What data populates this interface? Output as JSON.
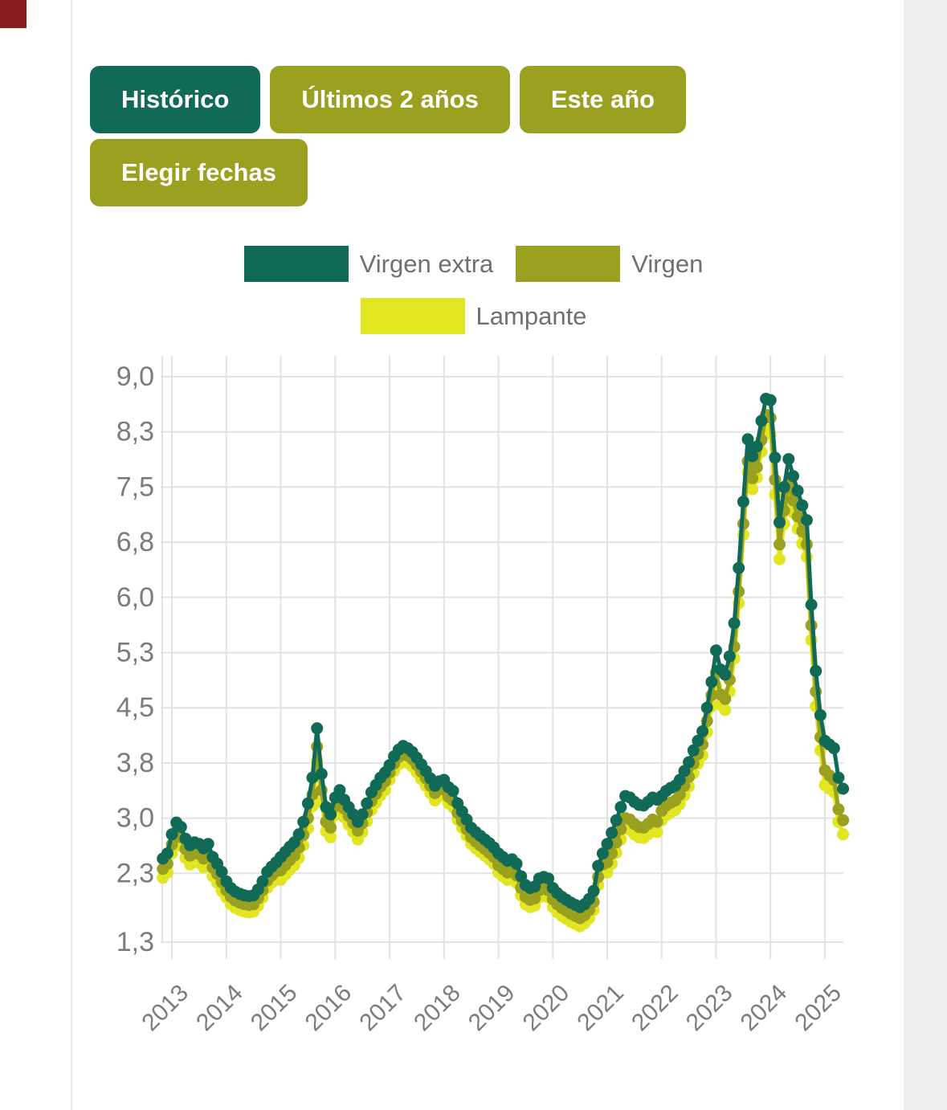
{
  "colors": {
    "dark_green": "#116a56",
    "olive": "#9aa01f",
    "yellow": "#e1e621",
    "corner_red": "#8a1c1c",
    "grid": "#e3e3e3",
    "axis_text": "#7b7d7c",
    "legend_text": "#6f706f"
  },
  "filters": {
    "buttons": [
      {
        "label": "Histórico",
        "active": true
      },
      {
        "label": "Últimos 2 años",
        "active": false
      },
      {
        "label": "Este año",
        "active": false
      },
      {
        "label": "Elegir fechas",
        "active": false
      }
    ]
  },
  "legend": {
    "items": [
      {
        "label": "Virgen extra",
        "color": "#116a56"
      },
      {
        "label": "Virgen",
        "color": "#9aa01f"
      },
      {
        "label": "Lampante",
        "color": "#e1e621"
      }
    ]
  },
  "chart_data": {
    "type": "line",
    "title": "",
    "frequency": "monthly",
    "start": "2012-11",
    "end": "2025-05",
    "x_axis": {
      "tick_labels": [
        "2013",
        "2014",
        "2015",
        "2016",
        "2017",
        "2018",
        "2019",
        "2020",
        "2021",
        "2022",
        "2023",
        "2024",
        "2025"
      ]
    },
    "y_axis": {
      "tick_labels": [
        "9,0",
        "8,3",
        "7,5",
        "6,8",
        "6,0",
        "5,3",
        "4,5",
        "3,8",
        "3,0",
        "2,3",
        "1,3"
      ],
      "tick_values": [
        9.0,
        8.25,
        7.5,
        6.75,
        6.0,
        5.25,
        4.5,
        3.75,
        3.0,
        2.25,
        1.315
      ],
      "range": [
        1.315,
        9.0
      ],
      "grid": true
    },
    "legend_position": "top-center",
    "series": [
      {
        "name": "Virgen extra",
        "color": "#116a56",
        "values": [
          2.45,
          2.52,
          2.78,
          2.94,
          2.88,
          2.72,
          2.63,
          2.67,
          2.65,
          2.59,
          2.65,
          2.47,
          2.38,
          2.27,
          2.14,
          2.05,
          2.0,
          1.97,
          1.95,
          1.94,
          1.95,
          2.03,
          2.14,
          2.27,
          2.34,
          2.4,
          2.47,
          2.54,
          2.61,
          2.67,
          2.78,
          2.95,
          3.2,
          3.55,
          4.22,
          3.6,
          3.15,
          3.05,
          3.28,
          3.38,
          3.25,
          3.15,
          3.05,
          2.95,
          3.05,
          3.2,
          3.35,
          3.45,
          3.55,
          3.62,
          3.72,
          3.84,
          3.93,
          3.98,
          3.95,
          3.9,
          3.82,
          3.73,
          3.64,
          3.54,
          3.44,
          3.5,
          3.52,
          3.42,
          3.37,
          3.2,
          3.09,
          2.98,
          2.87,
          2.81,
          2.76,
          2.71,
          2.66,
          2.6,
          2.52,
          2.47,
          2.42,
          2.44,
          2.38,
          2.21,
          2.09,
          2.05,
          2.07,
          2.18,
          2.2,
          2.18,
          2.05,
          1.98,
          1.93,
          1.89,
          1.85,
          1.82,
          1.79,
          1.83,
          1.9,
          2.01,
          2.35,
          2.52,
          2.65,
          2.8,
          2.97,
          3.15,
          3.3,
          3.28,
          3.22,
          3.18,
          3.17,
          3.22,
          3.28,
          3.25,
          3.3,
          3.37,
          3.41,
          3.44,
          3.52,
          3.64,
          3.76,
          3.92,
          4.05,
          4.18,
          4.5,
          4.85,
          5.28,
          5.02,
          4.95,
          5.2,
          5.65,
          6.4,
          7.3,
          8.15,
          7.92,
          8.05,
          8.4,
          8.7,
          8.68,
          7.9,
          7.02,
          7.5,
          7.88,
          7.65,
          7.45,
          7.25,
          7.05,
          5.9,
          5.0,
          4.4,
          4.05,
          4.0,
          3.95,
          3.55,
          3.4
        ]
      },
      {
        "name": "Virgen",
        "color": "#9aa01f",
        "values": [
          2.31,
          2.38,
          2.64,
          2.8,
          2.74,
          2.58,
          2.49,
          2.53,
          2.51,
          2.45,
          2.51,
          2.33,
          2.24,
          2.13,
          2.02,
          1.93,
          1.88,
          1.85,
          1.83,
          1.82,
          1.83,
          1.91,
          2.02,
          2.15,
          2.22,
          2.28,
          2.29,
          2.36,
          2.43,
          2.49,
          2.6,
          2.77,
          3.0,
          3.32,
          3.97,
          3.38,
          2.95,
          2.87,
          3.16,
          3.26,
          3.13,
          3.03,
          2.93,
          2.83,
          2.93,
          3.08,
          3.23,
          3.33,
          3.43,
          3.5,
          3.62,
          3.74,
          3.83,
          3.88,
          3.85,
          3.8,
          3.72,
          3.63,
          3.54,
          3.44,
          3.34,
          3.4,
          3.39,
          3.29,
          3.24,
          3.07,
          2.96,
          2.85,
          2.74,
          2.68,
          2.63,
          2.58,
          2.53,
          2.47,
          2.36,
          2.31,
          2.26,
          2.28,
          2.22,
          2.05,
          1.93,
          1.89,
          1.91,
          2.02,
          2.04,
          2.02,
          1.9,
          1.83,
          1.78,
          1.74,
          1.7,
          1.67,
          1.64,
          1.68,
          1.75,
          1.86,
          2.2,
          2.37,
          2.4,
          2.52,
          2.67,
          2.85,
          3.0,
          2.98,
          2.92,
          2.88,
          2.87,
          2.92,
          2.98,
          2.95,
          3.1,
          3.17,
          3.21,
          3.24,
          3.32,
          3.44,
          3.56,
          3.74,
          3.87,
          4.0,
          4.32,
          4.67,
          4.98,
          4.68,
          4.62,
          4.88,
          5.33,
          6.08,
          7.0,
          7.85,
          7.62,
          7.77,
          8.14,
          8.48,
          8.44,
          7.6,
          6.72,
          7.18,
          7.55,
          7.32,
          7.1,
          6.9,
          6.72,
          5.62,
          4.72,
          4.1,
          3.65,
          3.58,
          3.52,
          3.12,
          2.97
        ]
      },
      {
        "name": "Lampante",
        "color": "#e1e621",
        "values": [
          2.19,
          2.26,
          2.52,
          2.68,
          2.62,
          2.46,
          2.37,
          2.41,
          2.39,
          2.33,
          2.39,
          2.21,
          2.12,
          2.01,
          1.92,
          1.83,
          1.78,
          1.75,
          1.73,
          1.72,
          1.73,
          1.81,
          1.92,
          2.05,
          2.12,
          2.18,
          2.16,
          2.23,
          2.3,
          2.36,
          2.46,
          2.63,
          2.86,
          3.16,
          3.77,
          3.22,
          2.82,
          2.74,
          3.04,
          3.14,
          3.01,
          2.91,
          2.81,
          2.71,
          2.81,
          2.96,
          3.11,
          3.21,
          3.31,
          3.38,
          3.52,
          3.64,
          3.73,
          3.78,
          3.75,
          3.7,
          3.62,
          3.53,
          3.44,
          3.34,
          3.24,
          3.3,
          3.3,
          3.2,
          3.15,
          2.98,
          2.87,
          2.76,
          2.65,
          2.59,
          2.54,
          2.49,
          2.44,
          2.38,
          2.26,
          2.21,
          2.16,
          2.18,
          2.12,
          1.95,
          1.83,
          1.79,
          1.81,
          1.92,
          1.94,
          1.92,
          1.79,
          1.72,
          1.67,
          1.63,
          1.59,
          1.56,
          1.53,
          1.57,
          1.64,
          1.75,
          2.09,
          2.26,
          2.26,
          2.38,
          2.53,
          2.71,
          2.86,
          2.84,
          2.78,
          2.74,
          2.73,
          2.78,
          2.84,
          2.81,
          2.97,
          3.04,
          3.08,
          3.11,
          3.19,
          3.31,
          3.43,
          3.61,
          3.74,
          3.85,
          4.17,
          4.52,
          4.8,
          4.54,
          4.47,
          4.72,
          5.17,
          5.92,
          6.85,
          7.7,
          7.47,
          7.63,
          7.98,
          8.28,
          8.22,
          7.4,
          6.52,
          7.0,
          7.38,
          7.15,
          6.93,
          6.73,
          6.55,
          5.42,
          4.52,
          3.92,
          3.45,
          3.4,
          3.35,
          2.95,
          2.78
        ]
      }
    ]
  }
}
